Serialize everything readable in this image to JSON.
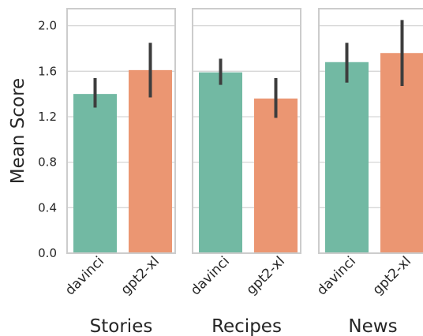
{
  "chart_data": {
    "type": "bar",
    "ylabel": "Mean Score",
    "ylim": [
      0,
      2.15
    ],
    "yticks": [
      "0.0",
      "0.4",
      "0.8",
      "1.2",
      "1.6",
      "2.0"
    ],
    "categories": [
      "davinci",
      "gpt2-xl"
    ],
    "grid": true,
    "colors": {
      "davinci": "#72b9a3",
      "gpt2-xl": "#eb9672",
      "error_bar": "#3d3d3d",
      "grid": "#d6d6d6",
      "frame": "#cccccc"
    },
    "panels": [
      {
        "title": "Stories",
        "values": [
          1.4,
          1.61
        ],
        "errors": [
          [
            1.28,
            1.54
          ],
          [
            1.37,
            1.85
          ]
        ]
      },
      {
        "title": "Recipes",
        "values": [
          1.59,
          1.36
        ],
        "errors": [
          [
            1.48,
            1.71
          ],
          [
            1.19,
            1.54
          ]
        ]
      },
      {
        "title": "News",
        "values": [
          1.68,
          1.76
        ],
        "errors": [
          [
            1.5,
            1.85
          ],
          [
            1.47,
            2.05
          ]
        ]
      }
    ]
  }
}
